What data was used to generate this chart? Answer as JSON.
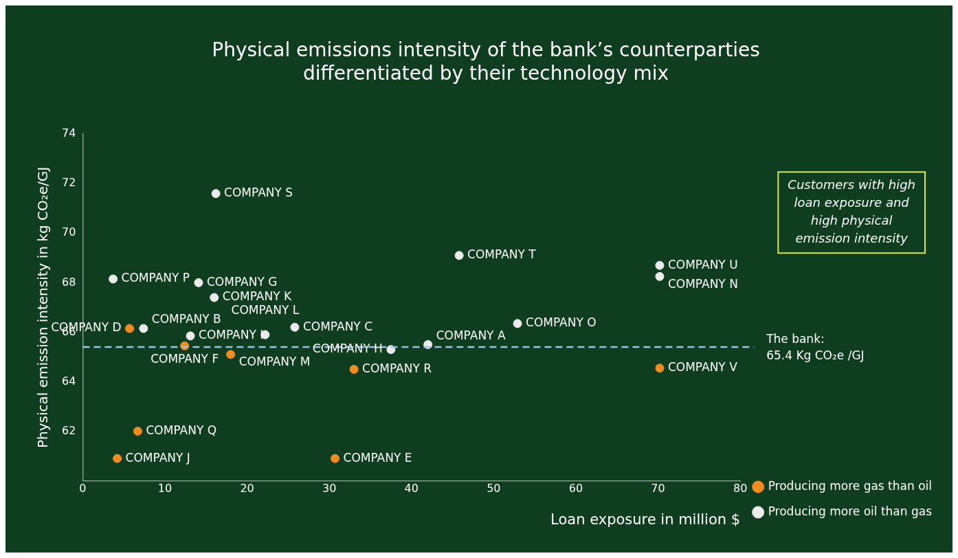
{
  "chart_data": {
    "type": "scatter",
    "title": "Physical emissions intensity of the bank’s counterparties\ndifferentiated by their technology mix",
    "xlabel": "Loan exposure in million $",
    "ylabel": "Physical emission intensity in kg CO₂e/GJ",
    "xlim": [
      0,
      80
    ],
    "xticks": [
      0,
      10,
      20,
      30,
      40,
      50,
      60,
      70,
      80
    ],
    "ylim": [
      60,
      74
    ],
    "yticks": [
      62,
      64,
      66,
      68,
      70,
      72,
      74
    ],
    "grid": false,
    "legend": "right",
    "marker": "circle",
    "series": [
      {
        "name": "Producing more gas than oil",
        "color": "#f28c1e",
        "x": [
          5.7,
          12.4,
          18.0,
          33.0,
          70.2,
          6.7,
          4.2,
          30.7
        ],
        "values": [
          66.15,
          65.45,
          65.1,
          64.5,
          64.55,
          62.0,
          60.9,
          60.9
        ],
        "value_labels": [
          "COMPANY D",
          "COMPANY F",
          "COMPANY M",
          "COMPANY R",
          "COMPANY V",
          "COMPANY Q",
          "COMPANY J",
          "COMPANY E"
        ]
      },
      {
        "name": "Producing more oil than gas",
        "color": "#ececec",
        "x": [
          16.2,
          3.7,
          14.1,
          16.0,
          7.4,
          13.1,
          22.2,
          25.8,
          42.0,
          37.5,
          45.8,
          70.2,
          70.2,
          52.9
        ],
        "values": [
          71.6,
          68.15,
          68.0,
          67.4,
          66.15,
          65.85,
          65.9,
          66.2,
          65.5,
          65.3,
          69.1,
          68.7,
          68.25,
          66.35
        ],
        "value_labels": [
          "COMPANY S",
          "COMPANY P",
          "COMPANY G",
          "COMPANY K",
          "COMPANY B",
          "COMPANY I",
          "COMPANY L",
          "COMPANY C",
          "COMPANY A",
          "COMPANY H",
          "COMPANY T",
          "COMPANY U",
          "COMPANY N",
          "COMPANY O"
        ]
      }
    ],
    "ref_lines": [
      {
        "axis": "y",
        "value": 65.4,
        "label": "The bank:\n65.4 Kg CO₂e /GJ",
        "color": "#9dc3e6",
        "line_style": "dashed"
      }
    ],
    "annotations": [
      "Customers with high\nloan exposure and\nhigh physical\nemission intensity"
    ]
  }
}
